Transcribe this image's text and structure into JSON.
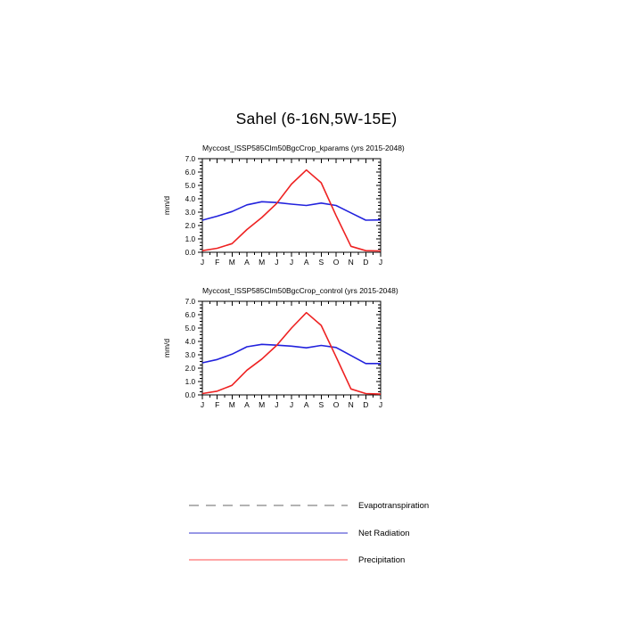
{
  "page_title": "Sahel (6-16N,5W-15E)",
  "chart_data": [
    {
      "type": "line",
      "title": "Myccost_ISSP585Clm50BgcCrop_kparams (yrs 2015-2048)",
      "xlabel": "",
      "ylabel": "mm/d",
      "ylim": [
        0.0,
        7.0
      ],
      "ytick_interval": 1.0,
      "yminor_interval": 0.25,
      "grid": false,
      "categories": [
        "J",
        "F",
        "M",
        "A",
        "M",
        "J",
        "J",
        "A",
        "S",
        "O",
        "N",
        "D",
        "J"
      ],
      "series": [
        {
          "name": "Net Radiation",
          "color": "#2222dd",
          "values": [
            2.4,
            2.7,
            3.05,
            3.55,
            3.78,
            3.72,
            3.6,
            3.5,
            3.68,
            3.5,
            2.95,
            2.4,
            2.42
          ]
        },
        {
          "name": "Precipitation",
          "color": "#ee2222",
          "values": [
            0.12,
            0.3,
            0.65,
            1.7,
            2.6,
            3.65,
            5.1,
            6.15,
            5.2,
            2.75,
            0.45,
            0.12,
            0.1
          ]
        }
      ]
    },
    {
      "type": "line",
      "title": "Myccost_ISSP585Clm50BgcCrop_control (yrs 2015-2048)",
      "xlabel": "",
      "ylabel": "mm/d",
      "ylim": [
        0.0,
        7.0
      ],
      "ytick_interval": 1.0,
      "yminor_interval": 0.25,
      "grid": false,
      "categories": [
        "J",
        "F",
        "M",
        "A",
        "M",
        "J",
        "J",
        "A",
        "S",
        "O",
        "N",
        "D",
        "J"
      ],
      "series": [
        {
          "name": "Net Radiation",
          "color": "#2222dd",
          "values": [
            2.4,
            2.65,
            3.05,
            3.6,
            3.78,
            3.72,
            3.65,
            3.52,
            3.7,
            3.55,
            2.95,
            2.35,
            2.35
          ]
        },
        {
          "name": "Precipitation",
          "color": "#ee2222",
          "values": [
            0.1,
            0.28,
            0.72,
            1.85,
            2.68,
            3.7,
            5.0,
            6.15,
            5.2,
            2.85,
            0.45,
            0.1,
            0.06
          ]
        }
      ]
    }
  ],
  "legend": {
    "entries": [
      {
        "label": "Evapotranspiration",
        "color": "#b3b3b3",
        "style": "dashed"
      },
      {
        "label": "Net Radiation",
        "color": "#7777dd",
        "style": "solid"
      },
      {
        "label": "Precipitation",
        "color": "#ff9999",
        "style": "solid"
      }
    ]
  }
}
